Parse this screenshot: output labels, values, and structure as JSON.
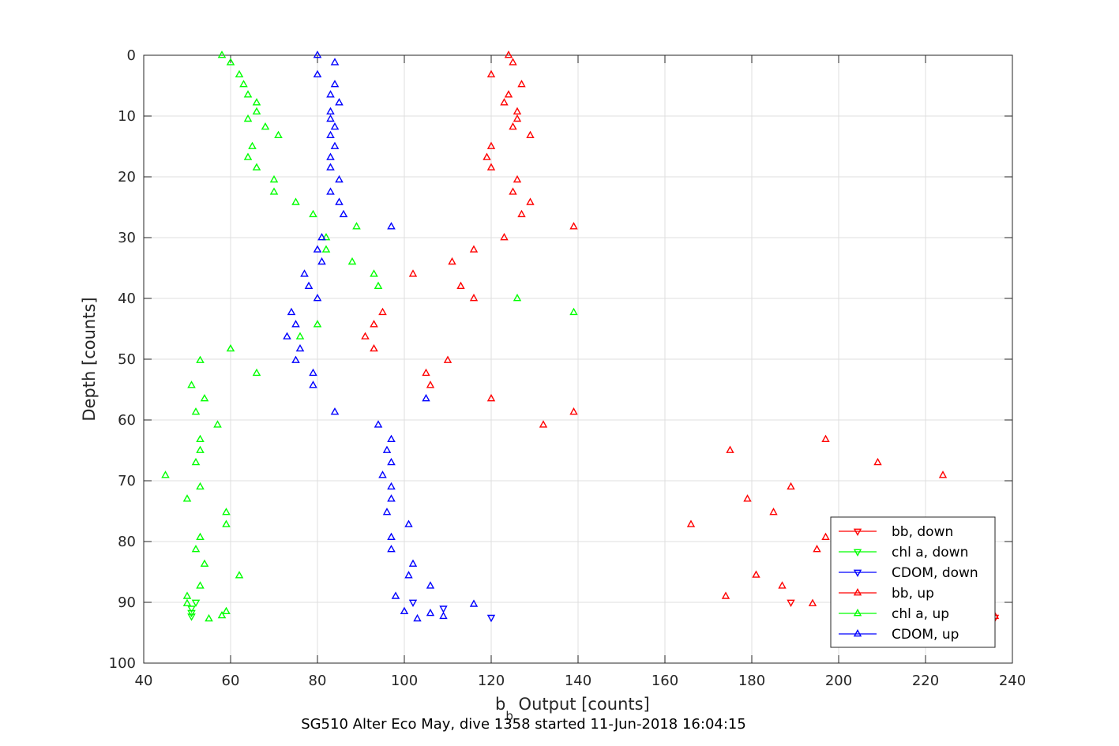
{
  "chart_data": {
    "type": "scatter",
    "title": "SG510 Alter Eco May, dive 1358 started 11-Jun-2018 16:04:15",
    "xlabel": "b Output [counts]",
    "xlabel_main": "b",
    "xlabel_sub": "b",
    "xlabel_rest": " Output [counts]",
    "ylabel": "Depth [counts]",
    "xlim": [
      40,
      240
    ],
    "ylim": [
      0,
      100
    ],
    "y_reversed": true,
    "grid": true,
    "legend_position": "lower-right",
    "xticks": [
      40,
      60,
      80,
      100,
      120,
      140,
      160,
      180,
      200,
      220,
      240
    ],
    "yticks": [
      0,
      10,
      20,
      30,
      40,
      50,
      60,
      70,
      80,
      90,
      100
    ],
    "series": [
      {
        "name": "bb, down",
        "color": "#ff0000",
        "marker": "triangle-down",
        "points": [
          [
            189,
            90
          ],
          [
            236,
            92.5
          ]
        ]
      },
      {
        "name": "chl a, down",
        "color": "#00ff00",
        "marker": "triangle-down",
        "points": [
          [
            52,
            90
          ],
          [
            51,
            91
          ],
          [
            51,
            91.7
          ],
          [
            51,
            92.3
          ]
        ]
      },
      {
        "name": "CDOM, down",
        "color": "#0000ff",
        "marker": "triangle-down",
        "points": [
          [
            102,
            90
          ],
          [
            109,
            91
          ],
          [
            120,
            92.5
          ]
        ]
      },
      {
        "name": "bb, up",
        "color": "#ff0000",
        "marker": "triangle-up",
        "points": [
          [
            124,
            0
          ],
          [
            125,
            1.2
          ],
          [
            120,
            3.2
          ],
          [
            127,
            4.8
          ],
          [
            124,
            6.5
          ],
          [
            123,
            7.8
          ],
          [
            126,
            9.3
          ],
          [
            126,
            10.5
          ],
          [
            125,
            11.8
          ],
          [
            129,
            13.2
          ],
          [
            120,
            15
          ],
          [
            119,
            16.8
          ],
          [
            120,
            18.5
          ],
          [
            126,
            20.5
          ],
          [
            125,
            22.5
          ],
          [
            129,
            24.2
          ],
          [
            127,
            26.2
          ],
          [
            139,
            28.2
          ],
          [
            123,
            30
          ],
          [
            116,
            32
          ],
          [
            111,
            34
          ],
          [
            102,
            36
          ],
          [
            113,
            38
          ],
          [
            116,
            40
          ],
          [
            95,
            42.3
          ],
          [
            93,
            44.3
          ],
          [
            91,
            46.3
          ],
          [
            93,
            48.3
          ],
          [
            110,
            50.2
          ],
          [
            105,
            52.3
          ],
          [
            106,
            54.3
          ],
          [
            120,
            56.5
          ],
          [
            139,
            58.7
          ],
          [
            132,
            60.8
          ],
          [
            197,
            63.2
          ],
          [
            175,
            65
          ],
          [
            209,
            67
          ],
          [
            224,
            69.1
          ],
          [
            189,
            71
          ],
          [
            179,
            73
          ],
          [
            185,
            75.2
          ],
          [
            166,
            77.2
          ],
          [
            197,
            79.3
          ],
          [
            195,
            81.3
          ],
          [
            181,
            85.5
          ],
          [
            187,
            87.3
          ],
          [
            174,
            89
          ],
          [
            194,
            90.2
          ],
          [
            236,
            92.3
          ]
        ]
      },
      {
        "name": "chl a, up",
        "color": "#00ff00",
        "marker": "triangle-up",
        "points": [
          [
            58,
            0
          ],
          [
            60,
            1.2
          ],
          [
            62,
            3.2
          ],
          [
            63,
            4.8
          ],
          [
            64,
            6.5
          ],
          [
            66,
            7.8
          ],
          [
            66,
            9.3
          ],
          [
            64,
            10.5
          ],
          [
            68,
            11.8
          ],
          [
            71,
            13.2
          ],
          [
            65,
            15
          ],
          [
            64,
            16.8
          ],
          [
            66,
            18.5
          ],
          [
            70,
            20.5
          ],
          [
            70,
            22.5
          ],
          [
            75,
            24.2
          ],
          [
            79,
            26.2
          ],
          [
            89,
            28.2
          ],
          [
            82,
            30
          ],
          [
            82,
            32
          ],
          [
            88,
            34
          ],
          [
            93,
            36
          ],
          [
            94,
            38
          ],
          [
            126,
            40
          ],
          [
            139,
            42.3
          ],
          [
            80,
            44.3
          ],
          [
            76,
            46.3
          ],
          [
            60,
            48.3
          ],
          [
            53,
            50.2
          ],
          [
            66,
            52.3
          ],
          [
            51,
            54.3
          ],
          [
            54,
            56.5
          ],
          [
            52,
            58.7
          ],
          [
            57,
            60.8
          ],
          [
            53,
            63.2
          ],
          [
            53,
            65
          ],
          [
            52,
            67
          ],
          [
            45,
            69.1
          ],
          [
            53,
            71
          ],
          [
            50,
            73
          ],
          [
            59,
            75.2
          ],
          [
            59,
            77.2
          ],
          [
            53,
            79.3
          ],
          [
            52,
            81.3
          ],
          [
            54,
            83.7
          ],
          [
            62,
            85.6
          ],
          [
            53,
            87.3
          ],
          [
            50,
            89
          ],
          [
            50,
            90.2
          ],
          [
            59,
            91.5
          ],
          [
            58,
            92.2
          ],
          [
            55,
            92.7
          ]
        ]
      },
      {
        "name": "CDOM, up",
        "color": "#0000ff",
        "marker": "triangle-up",
        "points": [
          [
            80,
            0
          ],
          [
            84,
            1.2
          ],
          [
            80,
            3.2
          ],
          [
            84,
            4.8
          ],
          [
            83,
            6.5
          ],
          [
            85,
            7.8
          ],
          [
            83,
            9.3
          ],
          [
            83,
            10.5
          ],
          [
            84,
            11.8
          ],
          [
            83,
            13.2
          ],
          [
            84,
            15
          ],
          [
            83,
            16.8
          ],
          [
            83,
            18.5
          ],
          [
            85,
            20.5
          ],
          [
            83,
            22.5
          ],
          [
            85,
            24.2
          ],
          [
            86,
            26.2
          ],
          [
            97,
            28.2
          ],
          [
            81,
            30
          ],
          [
            80,
            32
          ],
          [
            81,
            34
          ],
          [
            77,
            36
          ],
          [
            78,
            38
          ],
          [
            80,
            40
          ],
          [
            74,
            42.3
          ],
          [
            75,
            44.3
          ],
          [
            73,
            46.3
          ],
          [
            76,
            48.3
          ],
          [
            75,
            50.2
          ],
          [
            79,
            52.3
          ],
          [
            79,
            54.3
          ],
          [
            105,
            56.5
          ],
          [
            84,
            58.7
          ],
          [
            94,
            60.8
          ],
          [
            97,
            63.2
          ],
          [
            96,
            65
          ],
          [
            97,
            67
          ],
          [
            95,
            69.1
          ],
          [
            97,
            71
          ],
          [
            97,
            73
          ],
          [
            96,
            75.2
          ],
          [
            101,
            77.2
          ],
          [
            97,
            79.3
          ],
          [
            97,
            81.3
          ],
          [
            102,
            83.7
          ],
          [
            101,
            85.6
          ],
          [
            106,
            87.3
          ],
          [
            98,
            89
          ],
          [
            116,
            90.3
          ],
          [
            100,
            91.5
          ],
          [
            106,
            91.8
          ],
          [
            109,
            92.3
          ],
          [
            103,
            92.7
          ]
        ]
      }
    ]
  }
}
